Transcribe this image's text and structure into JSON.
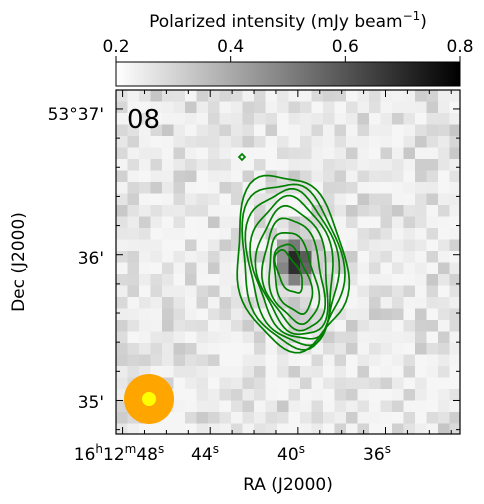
{
  "chart_data": {
    "type": "heatmap",
    "panel_label": "08",
    "xlabel": "RA (J2000)",
    "ylabel": "Dec (J2000)",
    "colorbar": {
      "label": "Polarized intensity (mJy beam",
      "label_exponent": "−1",
      "label_close": ")",
      "ticks": [
        {
          "text": "0.2",
          "value": 0.2
        },
        {
          "text": "0.4",
          "value": 0.4
        },
        {
          "text": "0.6",
          "value": 0.6
        },
        {
          "text": "0.8",
          "value": 0.8
        }
      ],
      "range": [
        0.2,
        0.8
      ],
      "colormap": "grayscale, white to black"
    },
    "x_ticks": [
      {
        "h": "16",
        "hs": "h",
        "m": "12",
        "ms": "m",
        "s": "48",
        "ss": "s",
        "full": true
      },
      {
        "s": "44",
        "ss": "s",
        "full": false
      },
      {
        "s": "40",
        "ss": "s",
        "full": false
      },
      {
        "s": "36",
        "ss": "s",
        "full": false
      }
    ],
    "x_tick_values_sec": [
      48,
      44,
      40,
      36
    ],
    "y_ticks": [
      {
        "text": "53°37'",
        "value_arcmin": 37
      },
      {
        "text": "36'",
        "value_arcmin": 36
      },
      {
        "text": "35'",
        "value_arcmin": 35
      }
    ],
    "xlim_sec": [
      48.3,
      32.6
    ],
    "ylim_arcmin": [
      34.77,
      37.13
    ],
    "peak": {
      "ra_sec": 40.1,
      "dec_arcmin": 35.95,
      "value": 0.6
    },
    "contour_color": "#008000",
    "beam": {
      "outer_color": "#ffa500",
      "inner_color": "#ffff00"
    },
    "grid": false
  }
}
